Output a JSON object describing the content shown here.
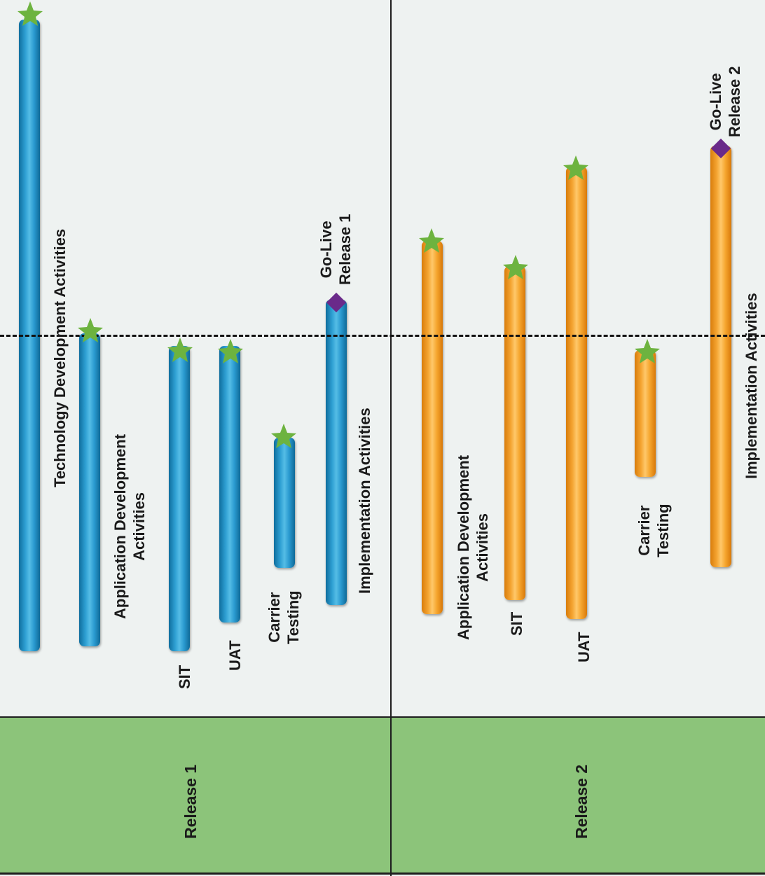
{
  "releases": [
    {
      "label": "Release 1"
    },
    {
      "label": "Release 2"
    }
  ],
  "activities": {
    "r1": {
      "tech": "Technology Development Activities",
      "app": [
        "Application Development",
        "Activities"
      ],
      "sit": "SIT",
      "uat": "UAT",
      "carrier": [
        "Carrier",
        "Testing"
      ],
      "golive": [
        "Go-Live",
        "Release 1"
      ],
      "impl": "Implementation Activities"
    },
    "r2": {
      "app": [
        "Application Development",
        "Activities"
      ],
      "sit": "SIT",
      "uat": "UAT",
      "carrier": [
        "Carrier",
        "Testing"
      ],
      "golive": [
        "Go-Live",
        "Release 2"
      ],
      "impl": "Implementation Activities"
    }
  },
  "markers": {
    "milestone": "star-icon",
    "go_live": "diamond-icon"
  },
  "colors": {
    "release1_bar": "#2e9fd2",
    "release2_bar": "#f4a431",
    "milestone_star": "#6db33f",
    "go_live_diamond": "#6a2a8a",
    "release_band": "#8cc47a",
    "background": "#eef2f1"
  }
}
